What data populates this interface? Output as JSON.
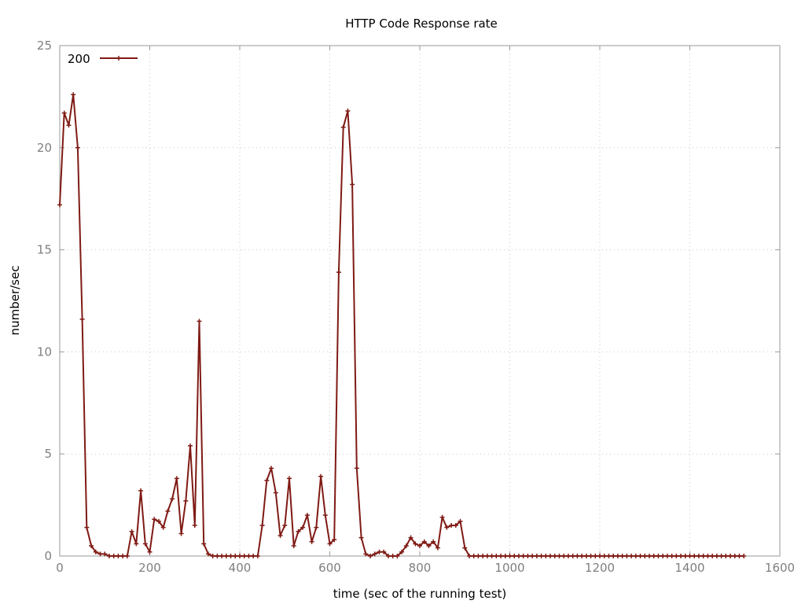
{
  "chart_data": {
    "type": "line",
    "title": "HTTP Code Response rate",
    "xlabel": "time (sec of the running test)",
    "ylabel": "number/sec",
    "xlim": [
      0,
      1600
    ],
    "ylim": [
      0,
      25
    ],
    "x_ticks": [
      "0",
      "200",
      "400",
      "600",
      "800",
      "1000",
      "1200",
      "1400",
      "1600"
    ],
    "y_ticks": [
      "0",
      "5",
      "10",
      "15",
      "20",
      "25"
    ],
    "grid": true,
    "legend_position": "top-left",
    "colors": {
      "series": "#7f1a14"
    },
    "series": [
      {
        "name": "200",
        "x": [
          0,
          10,
          20,
          30,
          40,
          50,
          60,
          70,
          80,
          90,
          100,
          110,
          120,
          130,
          140,
          150,
          160,
          170,
          180,
          190,
          200,
          210,
          220,
          230,
          240,
          250,
          260,
          270,
          280,
          290,
          300,
          310,
          320,
          330,
          340,
          350,
          360,
          370,
          380,
          390,
          400,
          410,
          420,
          430,
          440,
          450,
          460,
          470,
          480,
          490,
          500,
          510,
          520,
          530,
          540,
          550,
          560,
          570,
          580,
          590,
          600,
          610,
          620,
          630,
          640,
          650,
          660,
          670,
          680,
          690,
          700,
          710,
          720,
          730,
          740,
          750,
          760,
          770,
          780,
          790,
          800,
          810,
          820,
          830,
          840,
          850,
          860,
          870,
          880,
          890,
          900,
          910,
          920,
          930,
          940,
          950,
          960,
          970,
          980,
          990,
          1000,
          1010,
          1020,
          1030,
          1040,
          1050,
          1060,
          1070,
          1080,
          1090,
          1100,
          1110,
          1120,
          1130,
          1140,
          1150,
          1160,
          1170,
          1180,
          1190,
          1200,
          1210,
          1220,
          1230,
          1240,
          1250,
          1260,
          1270,
          1280,
          1290,
          1300,
          1310,
          1320,
          1330,
          1340,
          1350,
          1360,
          1370,
          1380,
          1390,
          1400,
          1410,
          1420,
          1430,
          1440,
          1450,
          1460,
          1470,
          1480,
          1490,
          1500,
          1510,
          1520
        ],
        "y": [
          17.2,
          21.7,
          21.1,
          22.6,
          20.0,
          11.6,
          1.4,
          0.5,
          0.2,
          0.1,
          0.1,
          0,
          0,
          0,
          0,
          0,
          1.2,
          0.6,
          3.2,
          0.6,
          0.2,
          1.8,
          1.7,
          1.4,
          2.2,
          2.8,
          3.8,
          1.1,
          2.7,
          5.4,
          1.5,
          11.5,
          0.6,
          0.1,
          0,
          0,
          0,
          0,
          0,
          0,
          0,
          0,
          0,
          0,
          0,
          1.5,
          3.7,
          4.3,
          3.1,
          1.0,
          1.5,
          3.8,
          0.5,
          1.2,
          1.4,
          2.0,
          0.7,
          1.4,
          3.9,
          2.0,
          0.6,
          0.8,
          13.9,
          21.0,
          21.8,
          18.2,
          4.3,
          0.9,
          0.1,
          0,
          0.1,
          0.2,
          0.2,
          0,
          0,
          0,
          0.2,
          0.5,
          0.9,
          0.6,
          0.5,
          0.7,
          0.5,
          0.7,
          0.4,
          1.9,
          1.4,
          1.5,
          1.5,
          1.7,
          0.4,
          0,
          0,
          0,
          0,
          0,
          0,
          0,
          0,
          0,
          0,
          0,
          0,
          0,
          0,
          0,
          0,
          0,
          0,
          0,
          0,
          0,
          0,
          0,
          0,
          0,
          0,
          0,
          0,
          0,
          0,
          0,
          0,
          0,
          0,
          0,
          0,
          0,
          0,
          0,
          0,
          0,
          0,
          0,
          0,
          0,
          0,
          0,
          0,
          0,
          0,
          0,
          0,
          0,
          0,
          0,
          0,
          0,
          0,
          0,
          0,
          0,
          0
        ]
      }
    ]
  }
}
